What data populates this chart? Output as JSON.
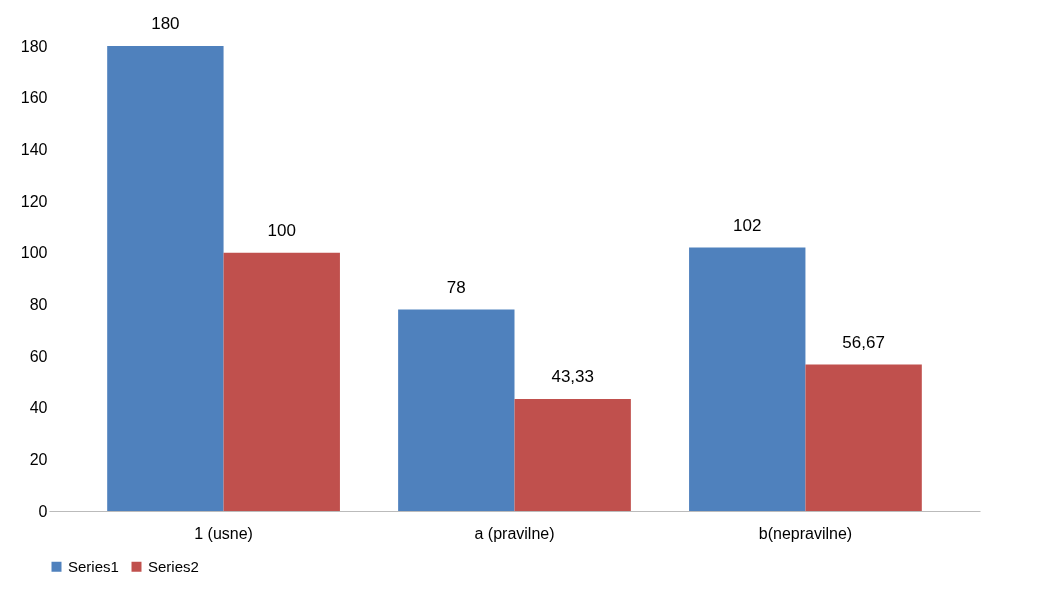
{
  "chart_data": {
    "type": "bar",
    "categories": [
      "1 (usne)",
      "a (pravilne)",
      "b(nepravilne)"
    ],
    "series": [
      {
        "name": "Series1",
        "color": "#4f81bd",
        "values": [
          180,
          78,
          102
        ],
        "value_labels": [
          "180",
          "78",
          "102"
        ]
      },
      {
        "name": "Series2",
        "color": "#c0504d",
        "values": [
          100,
          43.33,
          56.67
        ],
        "value_labels": [
          "100",
          "43,33",
          "56,67"
        ]
      }
    ],
    "ylim": [
      0,
      180
    ],
    "yticks": [
      0,
      20,
      40,
      60,
      80,
      100,
      120,
      140,
      160,
      180
    ],
    "grid": false,
    "legend": "bottom"
  }
}
